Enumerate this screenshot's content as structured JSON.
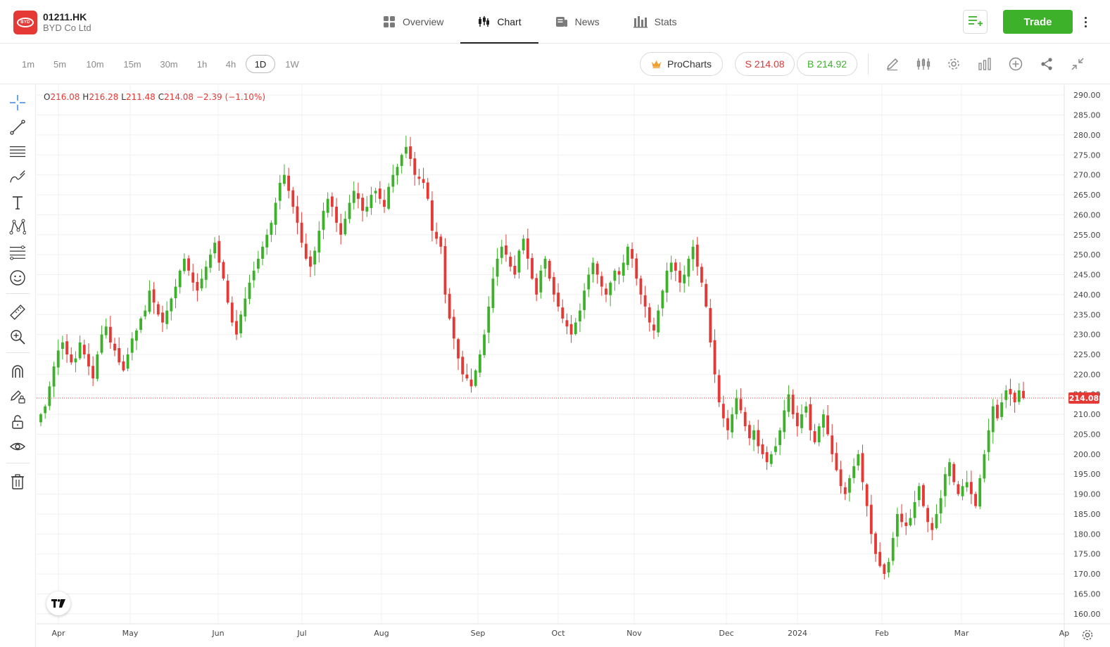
{
  "header": {
    "logo_text": "BYD",
    "ticker": "01211.HK",
    "company": "BYD Co Ltd",
    "tabs": [
      {
        "label": "Overview",
        "icon": "grid-icon",
        "active": false
      },
      {
        "label": "Chart",
        "icon": "candlestick-icon",
        "active": true
      },
      {
        "label": "News",
        "icon": "news-icon",
        "active": false
      },
      {
        "label": "Stats",
        "icon": "stats-icon",
        "active": false
      }
    ],
    "trade_label": "Trade"
  },
  "toolbar": {
    "timeframes": [
      "1m",
      "5m",
      "10m",
      "15m",
      "30m",
      "1h",
      "4h",
      "1D",
      "1W"
    ],
    "active_timeframe": "1D",
    "procharts_label": "ProCharts",
    "sell_label": "S 214.08",
    "buy_label": "B 214.92",
    "icons": [
      "pencil-icon",
      "indicators-icon",
      "settings-icon",
      "chart-type-icon",
      "add-icon",
      "share-icon",
      "collapse-icon"
    ]
  },
  "ohlc": {
    "o_label": "O",
    "o": "216.08",
    "h_label": "H",
    "h": "216.28",
    "l_label": "L",
    "l": "211.48",
    "c_label": "C",
    "c": "214.08",
    "change": "−2.39 (−1.10%)"
  },
  "colors": {
    "up": "#3eb12b",
    "down": "#e53935",
    "accent": "#3eb12b",
    "grid": "#f0f0f0"
  },
  "chart_data": {
    "type": "candlestick",
    "title": "",
    "xlabel": "",
    "ylabel": "",
    "ylim": [
      157.5,
      292.5
    ],
    "y_ticks": [
      "290.00",
      "285.00",
      "280.00",
      "275.00",
      "270.00",
      "265.00",
      "260.00",
      "255.00",
      "250.00",
      "245.00",
      "240.00",
      "235.00",
      "230.00",
      "225.00",
      "220.00",
      "215.00",
      "210.00",
      "205.00",
      "200.00",
      "195.00",
      "190.00",
      "185.00",
      "180.00",
      "175.00",
      "170.00",
      "165.00",
      "160.00"
    ],
    "x_ticks": [
      "Apr",
      "May",
      "Jun",
      "Jul",
      "Aug",
      "Sep",
      "Oct",
      "Nov",
      "Dec",
      "2024",
      "Feb",
      "Mar",
      "Ap"
    ],
    "last_price": 214.08,
    "last_price_label": "214.08",
    "grid": true,
    "closes": [
      210,
      212,
      217,
      222,
      226,
      228,
      225,
      223,
      224,
      228,
      225,
      222,
      219,
      225,
      230,
      232,
      228,
      226,
      223,
      221,
      225,
      229,
      231,
      234,
      236,
      241,
      238,
      235,
      233,
      236,
      239,
      242,
      246,
      249,
      246,
      243,
      241,
      244,
      247,
      250,
      253,
      248,
      244,
      238,
      233,
      230,
      235,
      239,
      243,
      246,
      249,
      252,
      255,
      258,
      263,
      268,
      270,
      266,
      262,
      258,
      253,
      249,
      247,
      251,
      256,
      261,
      264,
      262,
      258,
      255,
      259,
      263,
      266,
      264,
      261,
      262,
      265,
      266,
      264,
      262,
      267,
      270,
      272,
      275,
      277,
      274,
      270,
      269,
      268,
      264,
      256,
      254,
      252,
      240,
      234,
      229,
      224,
      220,
      219,
      217,
      221,
      225,
      230,
      237,
      244,
      249,
      252,
      250,
      247,
      245,
      251,
      254,
      249,
      244,
      240,
      246,
      249,
      244,
      240,
      237,
      234,
      232,
      230,
      233,
      236,
      241,
      245,
      248,
      245,
      242,
      240,
      243,
      246,
      245,
      248,
      252,
      249,
      244,
      240,
      237,
      233,
      231,
      236,
      241,
      246,
      248,
      246,
      243,
      245,
      249,
      252,
      247,
      243,
      237,
      228,
      220,
      213,
      209,
      206,
      210,
      214,
      211,
      207,
      204,
      206,
      202,
      200,
      198,
      200,
      202,
      206,
      211,
      215,
      210,
      207,
      210,
      212,
      206,
      203,
      207,
      210,
      205,
      200,
      196,
      192,
      190,
      194,
      197,
      200,
      193,
      187,
      180,
      175,
      172,
      170,
      173,
      179,
      185,
      183,
      182,
      184,
      188,
      192,
      187,
      183,
      181,
      185,
      189,
      195,
      198,
      193,
      190,
      192,
      193,
      190,
      187,
      194,
      200,
      206,
      212,
      209,
      213,
      216,
      215,
      213,
      216,
      214.08
    ]
  }
}
